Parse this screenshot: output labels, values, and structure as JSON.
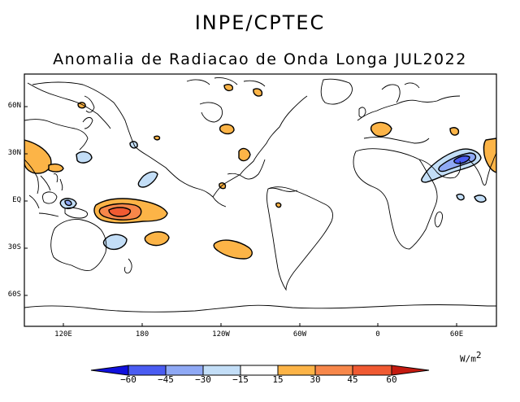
{
  "header": {
    "agency": "INPE/CPTEC",
    "title": "Anomalia de Radiacao de Onda Longa JUL2022"
  },
  "map": {
    "lat_labels": [
      "60N",
      "30N",
      "EQ",
      "30S",
      "60S"
    ],
    "lon_labels": [
      "120E",
      "180",
      "120W",
      "60W",
      "0",
      "60E"
    ]
  },
  "colorbar": {
    "units_base": "W/m",
    "units_exp": "2",
    "ticks": [
      "−60",
      "−45",
      "−30",
      "−15",
      "15",
      "30",
      "45",
      "60"
    ],
    "colors": [
      "#1010dd",
      "#4a5cf2",
      "#8fa9f5",
      "#c3def7",
      "#ffffff",
      "#fcb447",
      "#f7874a",
      "#f05a32",
      "#c41a10"
    ]
  }
}
